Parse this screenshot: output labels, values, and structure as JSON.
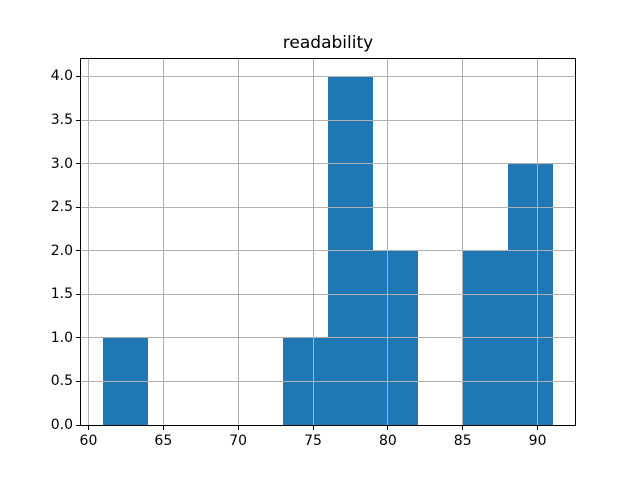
{
  "figure": {
    "background": "#ffffff"
  },
  "chart_data": {
    "type": "bar",
    "subtype": "histogram",
    "title": "readability",
    "xlabel": "",
    "ylabel": "",
    "bin_edges": [
      61,
      64,
      67,
      70,
      73,
      76,
      79,
      82,
      85,
      88,
      91
    ],
    "counts": [
      1,
      0,
      0,
      0,
      1,
      4,
      2,
      0,
      2,
      3
    ],
    "xlim": [
      59.5,
      92.5
    ],
    "ylim": [
      0,
      4.2
    ],
    "xticks": {
      "values": [
        60,
        65,
        70,
        75,
        80,
        85,
        90
      ],
      "labels": [
        "60",
        "65",
        "70",
        "75",
        "80",
        "85",
        "90"
      ]
    },
    "yticks": {
      "values": [
        0,
        0.5,
        1,
        1.5,
        2,
        2.5,
        3,
        3.5,
        4
      ],
      "labels": [
        "0.0",
        "0.5",
        "1.0",
        "1.5",
        "2.0",
        "2.5",
        "3.0",
        "3.5",
        "4.0"
      ]
    },
    "grid": true,
    "grid_above_bars": true,
    "legend": null,
    "colors": {
      "bar": "#1f77b4",
      "grid": "#b0b0b0",
      "spine": "#000000",
      "text": "#000000"
    }
  }
}
